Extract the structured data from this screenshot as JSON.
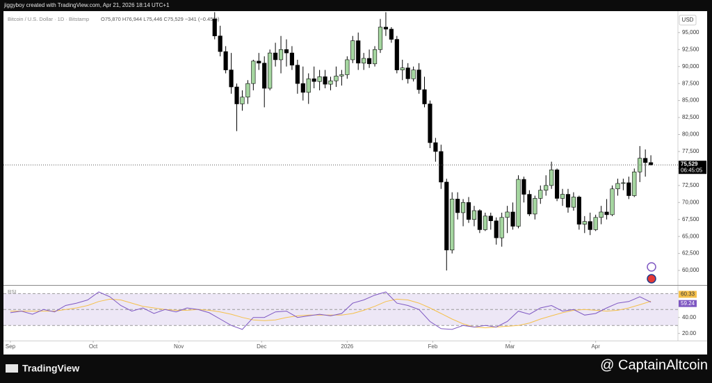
{
  "header": {
    "credit": "jiggyboy created with TradingView.com, Apr 21, 2026 18:14 UTC+1"
  },
  "chart_data": {
    "type": "candlestick",
    "legend": {
      "symbol": "Bitcoin / U.S. Dollar · 1D · Bitstamp",
      "ohlc": "O75,870 H76,944 L75,446 C75,529 −341 (−0.45%)"
    },
    "currency": "USD",
    "x": [
      74,
      76,
      78,
      80,
      82,
      84,
      86,
      88,
      90,
      92,
      94,
      96,
      98,
      100,
      102,
      104,
      106,
      108,
      110,
      112,
      114,
      116,
      118,
      120,
      122,
      124,
      126,
      128,
      130,
      132,
      134,
      136,
      138,
      140,
      142,
      144,
      146,
      148,
      150,
      152,
      154,
      156,
      158,
      160,
      162,
      164,
      166,
      168,
      170,
      172,
      174,
      176,
      178,
      180,
      182,
      184,
      186,
      188,
      190,
      192,
      194,
      196,
      198,
      200,
      202,
      204,
      206,
      208,
      210,
      212,
      214,
      216,
      218,
      220,
      222,
      224,
      226,
      228,
      230,
      232
    ],
    "open": [
      97000,
      94500,
      92200,
      89500,
      87000,
      84500,
      85500,
      87500,
      90800,
      90500,
      86800,
      92000,
      91000,
      92500,
      92000,
      90200,
      87500,
      86200,
      88200,
      87800,
      88500,
      87400,
      87900,
      88600,
      88800,
      91000,
      93800,
      90500,
      91200,
      90400,
      92500,
      95800,
      95500,
      94000,
      89500,
      89800,
      88200,
      89500,
      86600,
      84500,
      78800,
      77500,
      73000,
      63000,
      70500,
      68500,
      70000,
      67500,
      68800,
      66000,
      68000,
      67300,
      64800,
      67800,
      68600,
      66500,
      73400,
      71200,
      68300,
      70600,
      71800,
      72500,
      74800,
      70600,
      71200,
      69300,
      70800,
      66800,
      67200,
      66000,
      67800,
      68600,
      68200,
      72000,
      72800,
      72900,
      71000,
      74500,
      76500,
      75870
    ],
    "high": [
      98000,
      96000,
      93000,
      92000,
      87500,
      86500,
      88000,
      91000,
      92000,
      91500,
      92500,
      93500,
      94500,
      94000,
      93000,
      91000,
      90000,
      89000,
      90000,
      89500,
      89500,
      88500,
      90000,
      89500,
      91500,
      94500,
      95000,
      92000,
      92500,
      93000,
      97000,
      98000,
      95800,
      94500,
      91000,
      90500,
      90000,
      90500,
      88500,
      85000,
      79500,
      78500,
      73500,
      71500,
      71500,
      70500,
      70800,
      69500,
      69000,
      68500,
      68500,
      67800,
      68500,
      69500,
      70000,
      74000,
      73800,
      71800,
      71000,
      72500,
      74000,
      76000,
      75000,
      72000,
      72000,
      71500,
      71000,
      68000,
      68500,
      68200,
      69500,
      70500,
      72500,
      73500,
      73500,
      73800,
      75000,
      78300,
      77800,
      76944
    ],
    "low": [
      94000,
      91500,
      89000,
      86000,
      80500,
      83500,
      84500,
      86500,
      89500,
      84000,
      86500,
      90000,
      89000,
      90000,
      89500,
      86000,
      85000,
      84500,
      86800,
      86500,
      86800,
      86500,
      87000,
      87200,
      88200,
      90500,
      89500,
      89500,
      89800,
      90000,
      92000,
      94500,
      93500,
      89000,
      88000,
      87500,
      87800,
      86000,
      84000,
      78000,
      76000,
      72000,
      60000,
      62500,
      67500,
      66500,
      67000,
      66500,
      65500,
      65800,
      66000,
      63800,
      63500,
      65500,
      66000,
      66200,
      70000,
      68000,
      67500,
      69800,
      71000,
      72000,
      70200,
      69500,
      68500,
      68800,
      66000,
      65500,
      65200,
      65800,
      66800,
      67500,
      68000,
      71000,
      71800,
      70500,
      70800,
      73000,
      73800,
      75446
    ],
    "close": [
      94500,
      92200,
      89500,
      87000,
      84500,
      85500,
      87500,
      90800,
      90500,
      86800,
      92000,
      91000,
      92500,
      92000,
      90200,
      87500,
      86200,
      88200,
      87800,
      88500,
      87400,
      87900,
      88600,
      88800,
      91000,
      93800,
      90500,
      91200,
      90400,
      92500,
      95800,
      95500,
      94000,
      89500,
      89800,
      88200,
      89500,
      86600,
      84500,
      78800,
      77500,
      73000,
      63000,
      70500,
      68500,
      70000,
      67500,
      68800,
      66000,
      68000,
      67300,
      64800,
      67800,
      68600,
      66500,
      73400,
      71200,
      68300,
      70600,
      71800,
      72500,
      74800,
      70600,
      71200,
      69300,
      70800,
      66800,
      67200,
      66000,
      67800,
      68600,
      68200,
      72000,
      72800,
      72900,
      71000,
      74500,
      76500,
      75870,
      75529
    ],
    "up_color": "#a5d6a0",
    "down_color": "#000000",
    "xlim": [
      -2.5,
      241.8
    ],
    "xticks": [
      {
        "value": 0,
        "label": "Sep"
      },
      {
        "value": 30,
        "label": "Oct"
      },
      {
        "value": 61,
        "label": "Nov"
      },
      {
        "value": 91,
        "label": "Dec"
      },
      {
        "value": 122,
        "label": "2026"
      },
      {
        "value": 153,
        "label": "Feb"
      },
      {
        "value": 181,
        "label": "Mar"
      },
      {
        "value": 212,
        "label": "Apr"
      }
    ],
    "ylim": [
      57860,
      98050
    ],
    "yticks": [
      {
        "value": 60000,
        "label": "60,000"
      },
      {
        "value": 62500,
        "label": "62,500"
      },
      {
        "value": 65000,
        "label": "65,000"
      },
      {
        "value": 67500,
        "label": "67,500"
      },
      {
        "value": 70000,
        "label": "70,000"
      },
      {
        "value": 72500,
        "label": "72,500"
      },
      {
        "value": 75000,
        "label": "75,000"
      },
      {
        "value": 77500,
        "label": "77,500"
      },
      {
        "value": 80000,
        "label": "80,000"
      },
      {
        "value": 82500,
        "label": "82,500"
      },
      {
        "value": 85000,
        "label": "85,000"
      },
      {
        "value": 87500,
        "label": "87,500"
      },
      {
        "value": 90000,
        "label": "90,000"
      },
      {
        "value": 92500,
        "label": "92,500"
      },
      {
        "value": 95000,
        "label": "95,000"
      }
    ],
    "last_price": {
      "value": 75529,
      "label": "75,529"
    },
    "countdown": "06:45:05",
    "rsi": {
      "title": "RSI",
      "x": [
        0,
        4,
        8,
        12,
        16,
        20,
        24,
        28,
        32,
        36,
        40,
        44,
        48,
        52,
        56,
        60,
        64,
        68,
        72,
        76,
        80,
        84,
        88,
        92,
        96,
        100,
        104,
        108,
        112,
        116,
        120,
        124,
        128,
        132,
        136,
        140,
        144,
        148,
        152,
        156,
        160,
        164,
        168,
        172,
        176,
        180,
        184,
        188,
        192,
        196,
        200,
        204,
        208,
        212,
        216,
        220,
        224,
        228,
        232
      ],
      "values": [
        46,
        48,
        44,
        50,
        47,
        55,
        58,
        62,
        72,
        66,
        55,
        48,
        52,
        45,
        50,
        47,
        52,
        50,
        46,
        38,
        30,
        25,
        40,
        40,
        47,
        48,
        40,
        42,
        44,
        42,
        45,
        58,
        62,
        68,
        72,
        58,
        55,
        50,
        35,
        26,
        25,
        30,
        28,
        30,
        28,
        35,
        48,
        44,
        52,
        55,
        48,
        50,
        43,
        45,
        52,
        58,
        60,
        66,
        59.24
      ],
      "ma": [
        48,
        48,
        48,
        48,
        48,
        50,
        52,
        55,
        60,
        63,
        62,
        58,
        54,
        52,
        50,
        49,
        49,
        50,
        49,
        47,
        44,
        40,
        37,
        36,
        37,
        40,
        42,
        43,
        43,
        43,
        43,
        45,
        49,
        54,
        60,
        63,
        62,
        58,
        52,
        45,
        38,
        32,
        28,
        27,
        28,
        29,
        30,
        33,
        38,
        42,
        46,
        49,
        50,
        49,
        48,
        49,
        52,
        56,
        60.33
      ],
      "color": "#7e57c2",
      "ma_color": "#f5c04a",
      "band_color": "#ede7f6",
      "ylim": [
        11,
        79
      ],
      "yticks": [
        {
          "value": 20,
          "label": "20.00"
        },
        {
          "value": 40,
          "label": "40.00"
        }
      ],
      "levels": [
        70,
        50,
        30
      ]
    }
  },
  "footer": {
    "brand": "TradingView",
    "watermark": "@ CaptainAltcoin"
  }
}
